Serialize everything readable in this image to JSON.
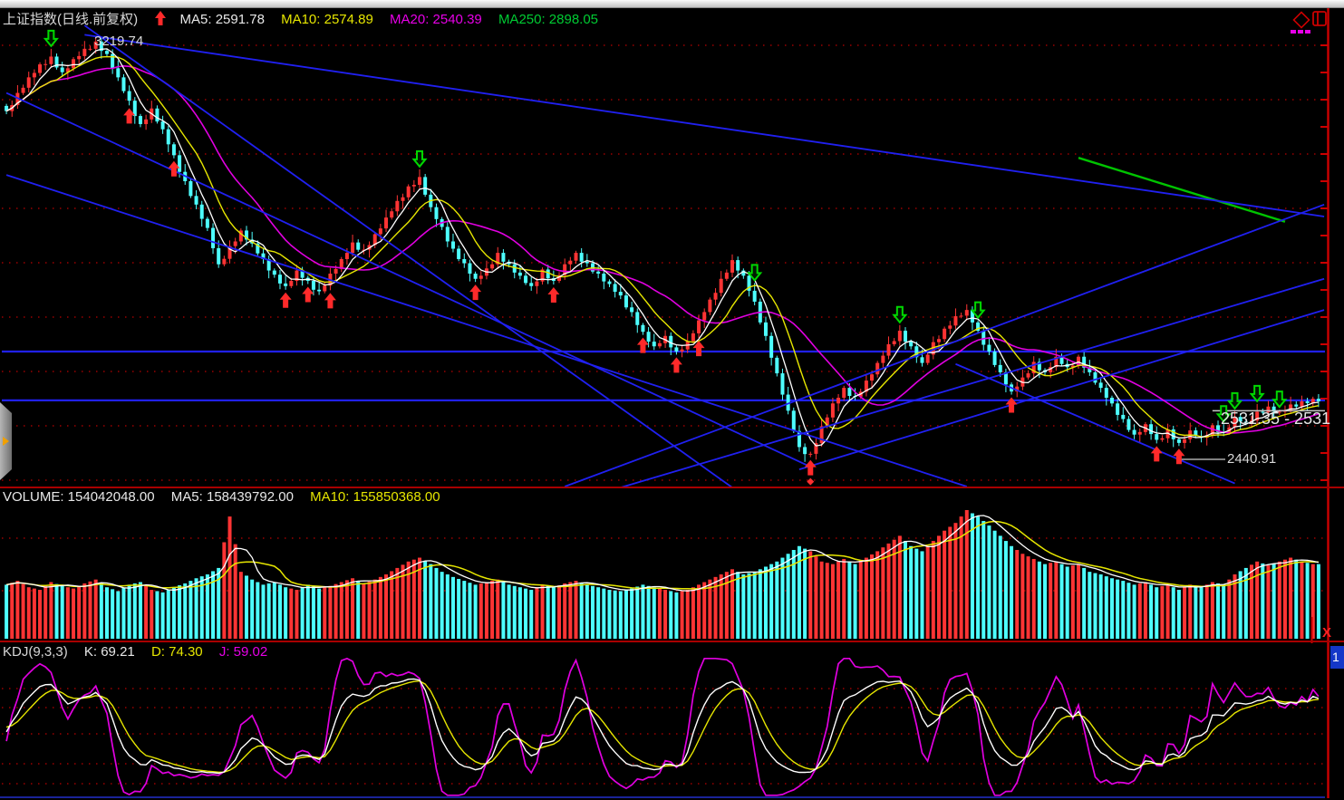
{
  "header": {
    "title": "上证指数(日线.前复权)",
    "ma5": "MA5: 2591.78",
    "ma10": "MA10: 2574.89",
    "ma20": "MA20: 2540.39",
    "ma250": "MA250: 2898.05"
  },
  "labels": {
    "peak": "3219.74",
    "current_range": "2531.35 - 2531",
    "low": "2440.91"
  },
  "volume_header": {
    "volume": "VOLUME: 154042048.00",
    "ma5": "MA5: 158439792.00",
    "ma10": "MA10: 155850368.00"
  },
  "kdj_header": {
    "name": "KDJ(9,3,3)",
    "k": "K: 69.21",
    "d": "D: 74.30",
    "j": "J: 59.02"
  },
  "right_controls": {
    "close_label": "X",
    "pane_badge": "1"
  },
  "colors": {
    "up": "#ff3434",
    "down": "#4dffff",
    "ma5": "#ffffff",
    "ma10": "#e6e600",
    "ma20": "#e000e0",
    "ma250": "#00c400",
    "trendline": "#2020f0",
    "grid": "#9a0000",
    "axis": "#cc0000",
    "buy_arrow": "#ff2a2a",
    "sell_arrow": "#00d800"
  },
  "chart_data": [
    {
      "type": "candlestick",
      "title": "上证指数 (Shanghai Composite, daily, fwd-adjusted)",
      "ylim": [
        2362,
        3285
      ],
      "peak_price": 3219.74,
      "low_price": 2440.91,
      "closes": [
        3085,
        3120,
        3150,
        3175,
        3190,
        3160,
        3185,
        3205,
        3219,
        3195,
        3150,
        3105,
        3060,
        3090,
        3050,
        3000,
        2950,
        2905,
        2860,
        2790,
        2825,
        2855,
        2830,
        2800,
        2770,
        2748,
        2778,
        2758,
        2738,
        2772,
        2800,
        2832,
        2818,
        2848,
        2880,
        2912,
        2940,
        2958,
        2900,
        2862,
        2820,
        2792,
        2762,
        2782,
        2812,
        2790,
        2768,
        2748,
        2780,
        2758,
        2790,
        2812,
        2792,
        2772,
        2752,
        2730,
        2698,
        2660,
        2632,
        2652,
        2622,
        2642,
        2682,
        2722,
        2762,
        2798,
        2768,
        2718,
        2652,
        2580,
        2508,
        2438,
        2425,
        2478,
        2522,
        2552,
        2535,
        2566,
        2600,
        2636,
        2662,
        2632,
        2600,
        2640,
        2666,
        2690,
        2702,
        2662,
        2622,
        2582,
        2545,
        2572,
        2602,
        2582,
        2612,
        2592,
        2612,
        2582,
        2552,
        2522,
        2492,
        2462,
        2482,
        2452,
        2472,
        2446,
        2470,
        2456,
        2480,
        2466,
        2496,
        2486,
        2506,
        2516,
        2506,
        2520,
        2526,
        2531
      ],
      "interp_jitter": [
        5,
        -6,
        3,
        -5,
        8,
        -4,
        4,
        -7
      ],
      "wick_pattern": [
        4,
        9,
        15,
        6,
        11,
        7
      ],
      "ma_periods": [
        5,
        10,
        20
      ],
      "ma250_segment": {
        "i1": 96,
        "p1": 2995,
        "i2": 114.5,
        "p2": 2872
      },
      "levels": [
        2622,
        2528
      ],
      "last_price_line": {
        "price": 2508,
        "from_i": 108
      },
      "trendlines": [
        {
          "i1": 0,
          "p1": 3120,
          "i2": 72,
          "p2": 2400
        },
        {
          "i1": 7,
          "p1": 3250,
          "i2": 65,
          "p2": 2360
        },
        {
          "i1": 7,
          "p1": 3232,
          "i2": 118,
          "p2": 2882
        },
        {
          "i1": 0,
          "p1": 2962,
          "i2": 86,
          "p2": 2362
        },
        {
          "i1": 50,
          "p1": 2362,
          "i2": 118,
          "p2": 2905
        },
        {
          "i1": 55,
          "p1": 2360,
          "i2": 118,
          "p2": 2762
        },
        {
          "i1": 71,
          "p1": 2395,
          "i2": 118,
          "p2": 2702
        },
        {
          "i1": 85,
          "p1": 2598,
          "i2": 110,
          "p2": 2368
        }
      ],
      "signals": {
        "buy_idx": [
          11,
          15,
          25,
          27,
          29,
          42,
          49,
          57,
          60,
          62,
          72,
          90,
          103,
          105
        ],
        "sell_idx": [
          4,
          37,
          67,
          80,
          87,
          109,
          110,
          112,
          114
        ],
        "diamond_idx": [
          72
        ]
      }
    },
    {
      "type": "bar",
      "name": "volume",
      "values": [
        0.42,
        0.45,
        0.4,
        0.38,
        0.44,
        0.41,
        0.39,
        0.43,
        0.46,
        0.4,
        0.37,
        0.42,
        0.44,
        0.38,
        0.36,
        0.4,
        0.43,
        0.47,
        0.5,
        0.55,
        0.95,
        0.52,
        0.46,
        0.42,
        0.44,
        0.4,
        0.38,
        0.42,
        0.39,
        0.41,
        0.44,
        0.47,
        0.43,
        0.46,
        0.5,
        0.55,
        0.6,
        0.63,
        0.58,
        0.52,
        0.48,
        0.45,
        0.42,
        0.44,
        0.46,
        0.42,
        0.4,
        0.38,
        0.42,
        0.4,
        0.43,
        0.45,
        0.42,
        0.4,
        0.38,
        0.37,
        0.39,
        0.42,
        0.4,
        0.38,
        0.36,
        0.38,
        0.42,
        0.46,
        0.5,
        0.54,
        0.5,
        0.52,
        0.56,
        0.6,
        0.66,
        0.72,
        0.68,
        0.6,
        0.58,
        0.62,
        0.58,
        0.63,
        0.68,
        0.74,
        0.8,
        0.72,
        0.68,
        0.76,
        0.84,
        0.9,
        1.0,
        0.95,
        0.88,
        0.8,
        0.72,
        0.66,
        0.62,
        0.58,
        0.6,
        0.56,
        0.58,
        0.52,
        0.5,
        0.47,
        0.45,
        0.42,
        0.44,
        0.4,
        0.42,
        0.38,
        0.42,
        0.4,
        0.44,
        0.42,
        0.5,
        0.55,
        0.6,
        0.57,
        0.6,
        0.63,
        0.6,
        0.58
      ],
      "ma_periods": [
        5,
        10
      ]
    },
    {
      "type": "line",
      "name": "KDJ",
      "params": [
        9,
        3,
        3
      ],
      "k_last": 69.21,
      "d_last": 74.3,
      "j_last": 59.02,
      "ylim": [
        -17,
        113
      ]
    }
  ]
}
